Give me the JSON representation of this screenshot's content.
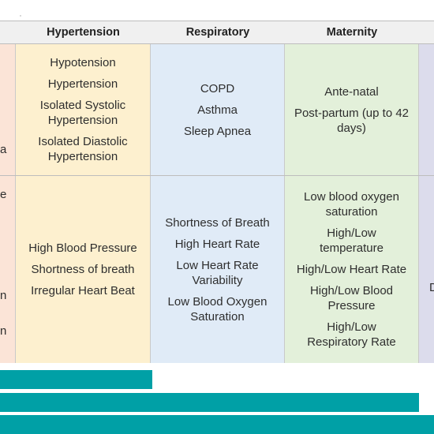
{
  "headers": {
    "hypertension": "Hypertension",
    "respiratory": "Respiratory",
    "maternity": "Maternity"
  },
  "conditions": {
    "left_fragment": "a",
    "hypertension": [
      "Hypotension",
      "Hypertension",
      "Isolated Systolic Hypertension",
      "Isolated Diastolic Hypertension"
    ],
    "respiratory": [
      "COPD",
      "Asthma",
      "Sleep Apnea"
    ],
    "maternity": [
      "Ante-natal",
      "Post-partum (up to 42 days)"
    ]
  },
  "indicators": {
    "left_fragments": [
      "e",
      "n",
      "n"
    ],
    "hypertension": [
      "High Blood Pressure",
      "Shortness of breath",
      "Irregular Heart Beat"
    ],
    "respiratory": [
      "Shortness of Breath",
      "High Heart Rate",
      "Low Heart Rate Variability",
      "Low Blood Oxygen Saturation"
    ],
    "maternity": [
      "Low blood oxygen saturation",
      "High/Low temperature",
      "High/Low Heart Rate",
      "High/Low Blood Pressure",
      "High/Low Respiratory Rate"
    ],
    "right_fragment": "D"
  },
  "colors": {
    "col1": "#fbe4d7",
    "hypertension": "#fdf0cf",
    "respiratory": "#e0ebf7",
    "maternity": "#e3f0da",
    "col5": "#dcdcec",
    "bars": "#00a0a6"
  }
}
